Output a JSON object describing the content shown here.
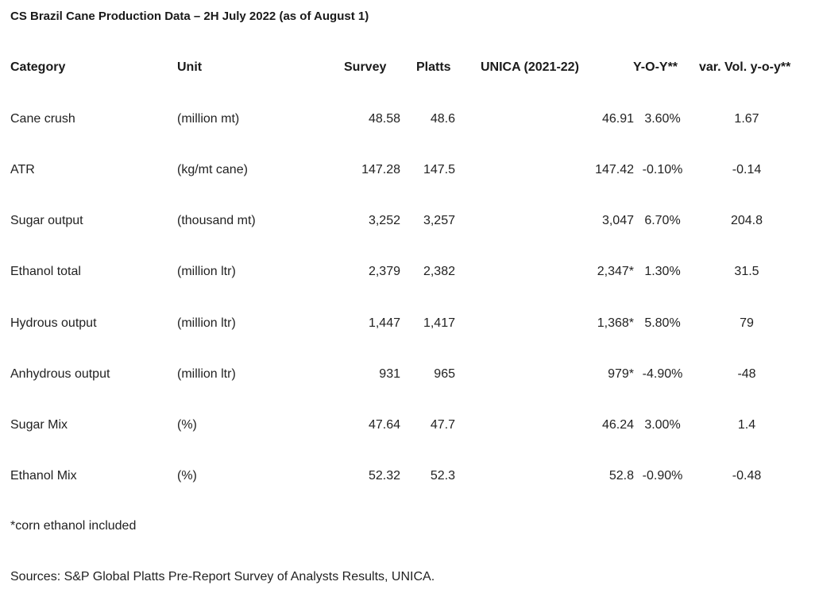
{
  "title": "CS Brazil Cane Production Data – 2H July 2022 (as of August 1)",
  "table": {
    "headers": [
      "Category",
      "Unit",
      "Survey",
      "Platts",
      "UNICA (2021-22)",
      "Y-O-Y**",
      "var. Vol. y-o-y**"
    ],
    "rows": [
      [
        "Cane crush",
        "(million mt)",
        "48.58",
        "48.6",
        "46.91",
        "3.60%",
        "1.67"
      ],
      [
        "ATR",
        "(kg/mt cane)",
        "147.28",
        "147.5",
        "147.42",
        "-0.10%",
        "-0.14"
      ],
      [
        "Sugar output",
        "(thousand mt)",
        "3,252",
        "3,257",
        "3,047",
        "6.70%",
        "204.8"
      ],
      [
        "Ethanol total",
        "(million ltr)",
        "2,379",
        "2,382",
        "2,347*",
        "1.30%",
        "31.5"
      ],
      [
        "Hydrous output",
        "(million ltr)",
        "1,447",
        "1,417",
        "1,368*",
        "5.80%",
        "79"
      ],
      [
        "Anhydrous output",
        "(million ltr)",
        "931",
        "965",
        "979*",
        "-4.90%",
        "-48"
      ],
      [
        "Sugar Mix",
        "(%)",
        "47.64",
        "47.7",
        "46.24",
        "3.00%",
        "1.4"
      ],
      [
        "Ethanol Mix",
        "(%)",
        "52.32",
        "52.3",
        "52.8",
        "-0.90%",
        "-0.48"
      ]
    ]
  },
  "footnote": "*corn ethanol included",
  "sources": "Sources: S&P Global Platts Pre-Report Survey of Analysts Results, UNICA."
}
